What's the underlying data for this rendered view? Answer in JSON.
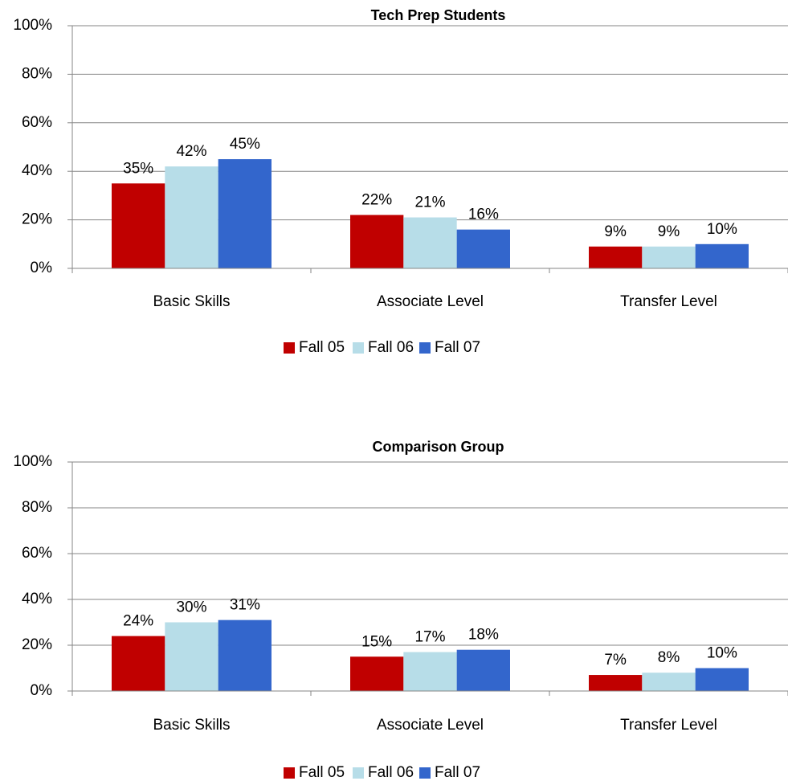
{
  "chart_data": [
    {
      "type": "bar",
      "title": "Tech Prep Students",
      "categories": [
        "Basic Skills",
        "Associate Level",
        "Transfer Level"
      ],
      "series": [
        {
          "name": "Fall 05",
          "color": "#c00000",
          "values": [
            35,
            22,
            9
          ],
          "value_labels": [
            "35%",
            "22%",
            "9%"
          ]
        },
        {
          "name": "Fall 06",
          "color": "#b7dde8",
          "values": [
            42,
            21,
            9
          ],
          "value_labels": [
            "42%",
            "21%",
            "9%"
          ]
        },
        {
          "name": "Fall 07",
          "color": "#3366cc",
          "values": [
            45,
            16,
            10
          ],
          "value_labels": [
            "45%",
            "16%",
            "10%"
          ]
        }
      ],
      "ylim": [
        0,
        100
      ],
      "yticks": [
        {
          "value": 0,
          "label": "0%"
        },
        {
          "value": 20,
          "label": "20%"
        },
        {
          "value": 40,
          "label": "40%"
        },
        {
          "value": 60,
          "label": "60%"
        },
        {
          "value": 80,
          "label": "80%"
        },
        {
          "value": 100,
          "label": "100%"
        }
      ],
      "grid": true,
      "legend": "bottom"
    },
    {
      "type": "bar",
      "title": "Comparison Group",
      "categories": [
        "Basic Skills",
        "Associate Level",
        "Transfer Level"
      ],
      "series": [
        {
          "name": "Fall 05",
          "color": "#c00000",
          "values": [
            24,
            15,
            7
          ],
          "value_labels": [
            "24%",
            "15%",
            "7%"
          ]
        },
        {
          "name": "Fall 06",
          "color": "#b7dde8",
          "values": [
            30,
            17,
            8
          ],
          "value_labels": [
            "30%",
            "17%",
            "8%"
          ]
        },
        {
          "name": "Fall 07",
          "color": "#3366cc",
          "values": [
            31,
            18,
            10
          ],
          "value_labels": [
            "31%",
            "18%",
            "10%"
          ]
        }
      ],
      "ylim": [
        0,
        100
      ],
      "yticks": [
        {
          "value": 0,
          "label": "0%"
        },
        {
          "value": 20,
          "label": "20%"
        },
        {
          "value": 40,
          "label": "40%"
        },
        {
          "value": 60,
          "label": "60%"
        },
        {
          "value": 80,
          "label": "80%"
        },
        {
          "value": 100,
          "label": "100%"
        }
      ],
      "grid": true,
      "legend": "bottom"
    }
  ]
}
